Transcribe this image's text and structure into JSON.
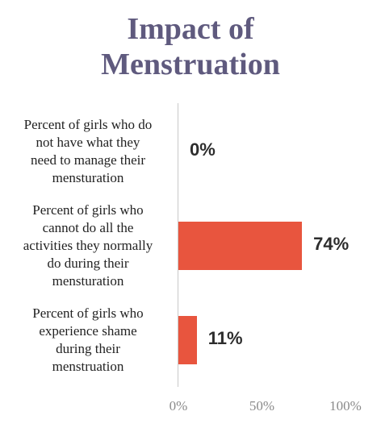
{
  "chart_data": {
    "type": "bar",
    "orientation": "horizontal",
    "title": [
      "Impact of",
      "Menstruation"
    ],
    "categories": [
      [
        "Percent of girls who do",
        "not have what they",
        "need to manage their",
        "mensturation"
      ],
      [
        "Percent of girls who",
        "cannot do all the",
        "activities they normally",
        "do during their",
        "mensturation"
      ],
      [
        "Percent of girls who",
        "experience shame",
        "during their",
        "menstruation"
      ]
    ],
    "values": [
      0,
      74,
      11
    ],
    "data_labels": [
      "0%",
      "74%",
      "11%"
    ],
    "xlim": [
      0,
      100
    ],
    "xticks": [
      "0%",
      "50%",
      "100%"
    ],
    "grid": false,
    "bar_color": "#e8553e",
    "title_color": "#5f5a7e"
  }
}
